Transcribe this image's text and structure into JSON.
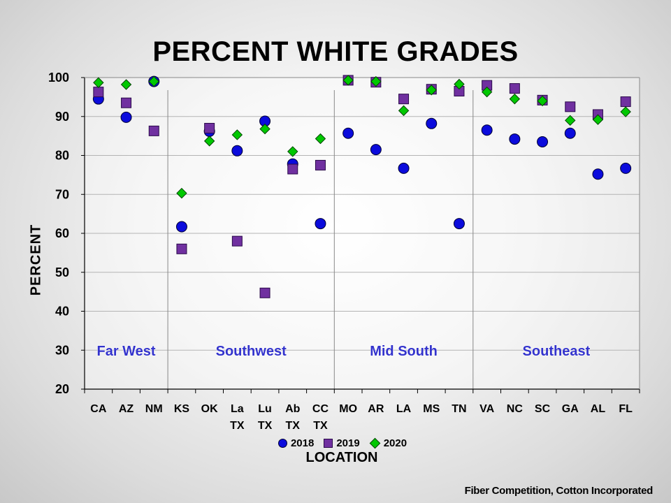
{
  "chart_data": {
    "type": "scatter",
    "title": "PERCENT WHITE GRADES",
    "xlabel": "LOCATION",
    "ylabel": "PERCENT",
    "ylim": [
      20,
      100
    ],
    "yticks": [
      20,
      30,
      40,
      50,
      60,
      70,
      80,
      90,
      100
    ],
    "grid": true,
    "legend_placement": "bottom",
    "categories": [
      "CA",
      "AZ",
      "NM",
      "KS",
      "OK",
      "La TX",
      "Lu TX",
      "Ab TX",
      "CC TX",
      "MO",
      "AR",
      "LA",
      "MS",
      "TN",
      "VA",
      "NC",
      "SC",
      "GA",
      "AL",
      "FL"
    ],
    "category_lines": [
      [
        "CA"
      ],
      [
        "AZ"
      ],
      [
        "NM"
      ],
      [
        "KS"
      ],
      [
        "OK"
      ],
      [
        "La",
        "TX"
      ],
      [
        "Lu",
        "TX"
      ],
      [
        "Ab",
        "TX"
      ],
      [
        "CC",
        "TX"
      ],
      [
        "MO"
      ],
      [
        "AR"
      ],
      [
        "LA"
      ],
      [
        "MS"
      ],
      [
        "TN"
      ],
      [
        "VA"
      ],
      [
        "NC"
      ],
      [
        "SC"
      ],
      [
        "GA"
      ],
      [
        "AL"
      ],
      [
        "FL"
      ]
    ],
    "regions": [
      {
        "name": "Far West",
        "from": 0,
        "to": 2
      },
      {
        "name": "Southwest",
        "from": 3,
        "to": 8
      },
      {
        "name": "Mid South",
        "from": 9,
        "to": 13
      },
      {
        "name": "Southeast",
        "from": 14,
        "to": 19
      }
    ],
    "series": [
      {
        "name": "2018",
        "marker": "circle",
        "color": "#0b0bdc",
        "values": [
          94.5,
          89.8,
          99.0,
          61.7,
          86.2,
          81.2,
          88.8,
          77.8,
          62.5,
          85.7,
          81.5,
          76.7,
          88.2,
          62.5,
          86.5,
          84.2,
          83.5,
          85.7,
          75.2,
          76.7
        ]
      },
      {
        "name": "2019",
        "marker": "square",
        "color": "#7030a0",
        "values": [
          96.3,
          93.5,
          86.3,
          56.0,
          87.0,
          58.0,
          44.7,
          76.5,
          77.5,
          99.3,
          98.8,
          94.5,
          97.0,
          96.5,
          98.0,
          97.2,
          94.2,
          92.5,
          90.5,
          93.8
        ]
      },
      {
        "name": "2020",
        "marker": "diamond",
        "color": "#00c800",
        "values": [
          98.7,
          98.2,
          99.0,
          70.3,
          83.7,
          85.3,
          86.8,
          81.0,
          84.3,
          99.3,
          99.0,
          91.5,
          96.8,
          98.3,
          96.3,
          94.5,
          94.0,
          89.0,
          89.2,
          91.2
        ]
      }
    ]
  },
  "source_note": "Fiber Competition, Cotton Incorporated",
  "colors": {
    "region_label": "#3333cc",
    "grid": "#b4b4b4",
    "axis": "#000000"
  }
}
